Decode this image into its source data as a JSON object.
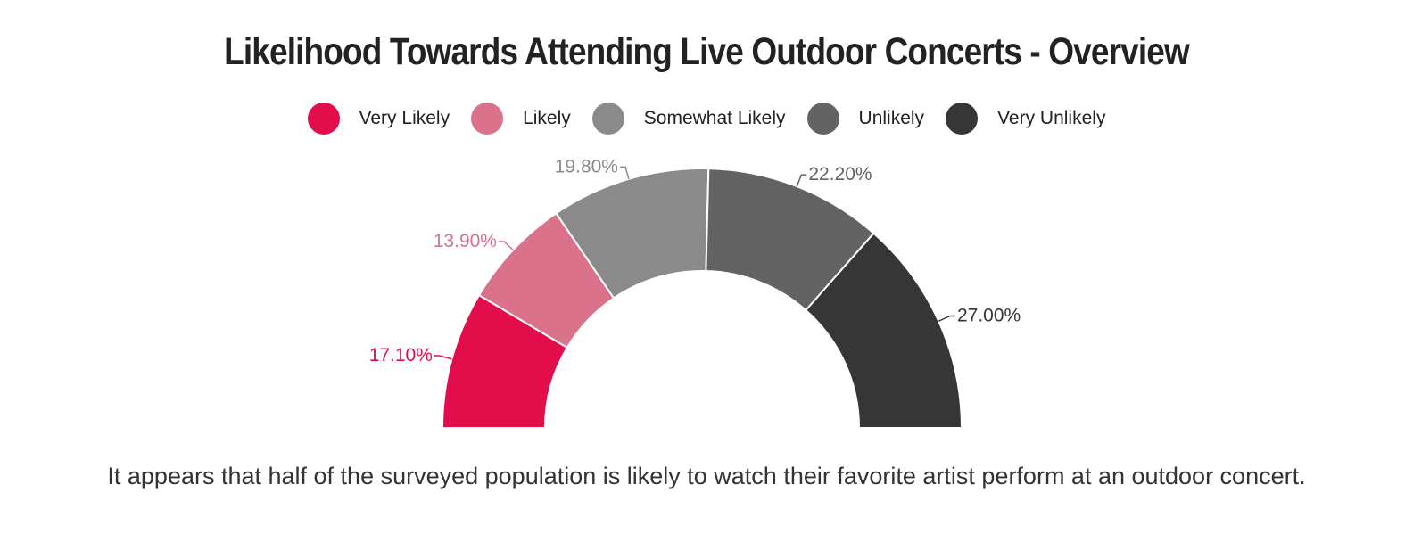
{
  "chart_data": {
    "type": "pie",
    "variant": "semi-donut",
    "title": "Likelihood Towards Attending Live Outdoor Concerts - Overview",
    "legend_position": "top",
    "categories": [
      "Very Likely",
      "Likely",
      "Somewhat Likely",
      "Unlikely",
      "Very Unlikely"
    ],
    "values": [
      17.1,
      13.9,
      19.8,
      22.2,
      27.0
    ],
    "data_labels": [
      "17.10%",
      "13.90%",
      "19.80%",
      "22.20%",
      "27.00%"
    ],
    "colors": [
      "#e30d4b",
      "#d9728a",
      "#8a8a8a",
      "#636363",
      "#363636"
    ]
  },
  "caption": "It appears that half of the surveyed population is likely to watch their favorite artist perform at an outdoor concert."
}
